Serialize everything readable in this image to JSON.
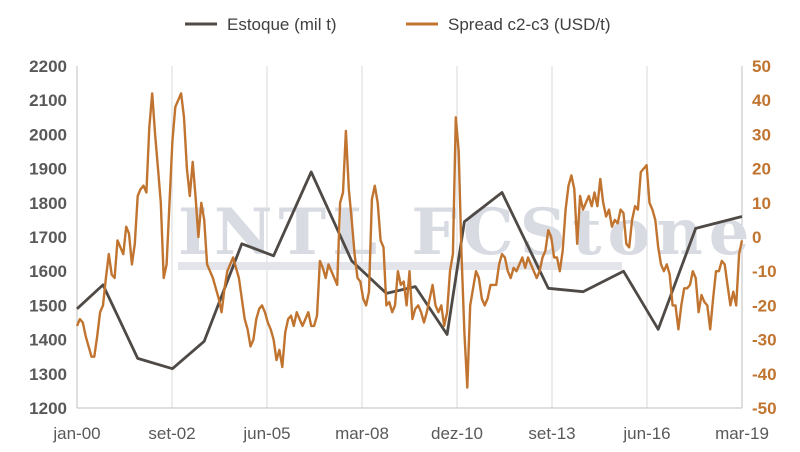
{
  "chart_data": {
    "type": "line",
    "title": "",
    "watermark": "INTL FCStone",
    "legend": {
      "placement": "top"
    },
    "grid": {
      "vertical": true,
      "horizontal": false
    },
    "x_ticks": [
      "jan-00",
      "set-02",
      "jun-05",
      "mar-08",
      "dez-10",
      "set-13",
      "jun-16",
      "mar-19"
    ],
    "x_range": [
      0,
      230
    ],
    "axes": {
      "left": {
        "min": 1200,
        "max": 2200,
        "step": 100,
        "ticks": [
          "1200",
          "1300",
          "1400",
          "1500",
          "1600",
          "1700",
          "1800",
          "1900",
          "2000",
          "2100",
          "2200"
        ]
      },
      "right": {
        "min": -50,
        "max": 50,
        "step": 10,
        "ticks": [
          "-50",
          "-40",
          "-30",
          "-20",
          "-10",
          "0",
          "10",
          "20",
          "30",
          "40",
          "50"
        ]
      }
    },
    "series": [
      {
        "name": "Estoque (mil t)",
        "axis": "left",
        "color": "#4f4a45",
        "x": [
          0,
          9,
          21,
          33,
          44,
          57,
          68,
          81,
          95,
          107,
          117,
          128,
          134,
          147,
          163,
          175,
          189,
          201,
          214,
          230
        ],
        "y": [
          1490,
          1560,
          1345,
          1315,
          1395,
          1680,
          1645,
          1890,
          1630,
          1535,
          1555,
          1415,
          1745,
          1830,
          1550,
          1540,
          1600,
          1430,
          1725,
          1760
        ]
      },
      {
        "name": "Spread c2-c3 (USD/t)",
        "axis": "right",
        "color": "#c0742f",
        "x": [
          0,
          1,
          2,
          3,
          4,
          5,
          6,
          7,
          8,
          9,
          10,
          11,
          12,
          13,
          14,
          15,
          16,
          17,
          18,
          19,
          20,
          21,
          22,
          23,
          24,
          25,
          26,
          27,
          28,
          29,
          30,
          31,
          32,
          33,
          34,
          35,
          36,
          37,
          38,
          39,
          40,
          41,
          42,
          43,
          44,
          45,
          46,
          47,
          48,
          49,
          50,
          51,
          52,
          53,
          54,
          55,
          56,
          57,
          58,
          59,
          60,
          61,
          62,
          63,
          64,
          65,
          66,
          67,
          68,
          69,
          70,
          71,
          72,
          73,
          74,
          75,
          76,
          77,
          78,
          79,
          80,
          81,
          82,
          83,
          84,
          85,
          86,
          87,
          88,
          89,
          90,
          91,
          92,
          93,
          94,
          95,
          96,
          97,
          98,
          99,
          100,
          101,
          102,
          103,
          104,
          105,
          106,
          107,
          108,
          109,
          110,
          111,
          112,
          113,
          114,
          115,
          116,
          117,
          118,
          119,
          120,
          121,
          122,
          123,
          124,
          125,
          126,
          127,
          128,
          129,
          130,
          131,
          132,
          133,
          134,
          135,
          136,
          137,
          138,
          139,
          140,
          141,
          142,
          143,
          144,
          145,
          146,
          147,
          148,
          149,
          150,
          151,
          152,
          153,
          154,
          155,
          156,
          157,
          158,
          159,
          160,
          161,
          162,
          163,
          164,
          165,
          166,
          167,
          168,
          169,
          170,
          171,
          172,
          173,
          174,
          175,
          176,
          177,
          178,
          179,
          180,
          181,
          182,
          183,
          184,
          185,
          186,
          187,
          188,
          189,
          190,
          191,
          192,
          193,
          194,
          195,
          196,
          197,
          198,
          199,
          200,
          201,
          202,
          203,
          204,
          205,
          206,
          207,
          208,
          209,
          210,
          211,
          212,
          213,
          214,
          215,
          216,
          217,
          218,
          219,
          220,
          221,
          222,
          223,
          224,
          225,
          226,
          227,
          228,
          229,
          230
        ],
        "y": [
          -26,
          -24,
          -25,
          -29,
          -32,
          -35,
          -35,
          -29,
          -22,
          -20,
          -12,
          -5,
          -11,
          -12,
          -1,
          -3,
          -5,
          3,
          1,
          -8,
          -2,
          12,
          14,
          15,
          13,
          32,
          42,
          30,
          20,
          10,
          -12,
          -8,
          10,
          28,
          38,
          40,
          42,
          35,
          20,
          12,
          22,
          12,
          0,
          10,
          5,
          -8,
          -10,
          -12,
          -15,
          -18,
          -22,
          -15,
          -10,
          -8,
          -6,
          -9,
          -12,
          -18,
          -24,
          -27,
          -32,
          -30,
          -24,
          -21,
          -20,
          -22,
          -25,
          -27,
          -30,
          -36,
          -33,
          -38,
          -28,
          -24,
          -23,
          -26,
          -22,
          -24,
          -26,
          -24,
          -22,
          -26,
          -26,
          -23,
          -7,
          -9,
          -12,
          -8,
          -10,
          -12,
          -14,
          10,
          13,
          31,
          14,
          5,
          -5,
          -12,
          -13,
          -18,
          -20,
          -16,
          11,
          15,
          10,
          -1,
          -3,
          -20,
          -19,
          -22,
          -20,
          -10,
          -14,
          -13,
          -20,
          -10,
          -24,
          -21,
          -20,
          -22,
          -25,
          -22,
          -18,
          -14,
          -20,
          -22,
          -20,
          -26,
          -22,
          -10,
          -5,
          35,
          25,
          -5,
          -28,
          -44,
          -20,
          -15,
          -10,
          -12,
          -18,
          -20,
          -18,
          -14,
          -14,
          -14,
          -8,
          -5,
          -6,
          -10,
          -12,
          -9,
          -10,
          -8,
          -6,
          -9,
          -6,
          -8,
          -10,
          -12,
          -10,
          -6,
          -4,
          2,
          0,
          -6,
          -6,
          -10,
          -4,
          8,
          15,
          18,
          14,
          -2,
          12,
          8,
          10,
          12,
          9,
          13,
          9,
          17,
          10,
          6,
          8,
          3,
          5,
          4,
          8,
          7,
          -2,
          -3,
          5,
          9,
          8,
          19,
          20,
          21,
          10,
          8,
          5,
          -3,
          -8,
          -10,
          -8,
          -11,
          -20,
          -20,
          -27,
          -20,
          -15,
          -15,
          -14,
          -10,
          -12,
          -22,
          -17,
          -19,
          -20,
          -27,
          -18,
          -10,
          -10,
          -7,
          -8,
          -14,
          -20,
          -16,
          -20,
          -5,
          -1
        ]
      }
    ]
  }
}
